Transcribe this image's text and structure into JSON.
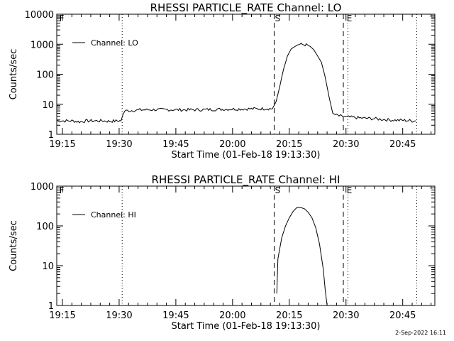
{
  "chart_data": [
    {
      "type": "line",
      "title": "RHESSI PARTICLE_RATE Channel: LO",
      "xlabel": "Start Time (01-Feb-18 19:13:30)",
      "ylabel": "Counts/sec",
      "x_tick_labels": [
        "19:15",
        "19:30",
        "19:45",
        "20:00",
        "20:15",
        "20:30",
        "20:45"
      ],
      "x_ticks_min": [
        1.5,
        16.5,
        31.5,
        46.5,
        61.5,
        76.5,
        91.5
      ],
      "xlim_min": [
        0,
        100
      ],
      "y_scale": "log",
      "ylim": [
        1,
        10000
      ],
      "y_tick_labels": [
        "1",
        "10",
        "100",
        "1000",
        "10000"
      ],
      "y_ticks": [
        1,
        10,
        100,
        1000,
        10000
      ],
      "legend": "top-left",
      "legend_entries": [
        "Channel: LO"
      ],
      "flag_letters": [
        "F",
        "S",
        "E"
      ],
      "flag_x_min": [
        0.5,
        57.5,
        76.5
      ],
      "dashed_x_min": [
        57.5,
        75.8
      ],
      "dotted_x_min": [
        17.3,
        77.0,
        95.2
      ],
      "series": [
        {
          "name": "Channel: LO",
          "x_min": [
            0,
            4,
            6,
            8,
            12,
            14,
            16,
            17,
            17.5,
            18,
            22,
            26,
            30,
            34,
            38,
            42,
            46,
            50,
            54,
            56,
            57,
            58,
            59,
            60,
            61,
            62,
            64,
            66,
            67,
            68,
            70,
            71,
            72,
            73,
            74,
            75,
            76,
            76.5,
            80,
            84,
            88,
            92,
            94,
            95
          ],
          "y": [
            2.8,
            2.8,
            2.6,
            2.8,
            2.8,
            2.7,
            2.8,
            2.8,
            4.5,
            6.0,
            6.5,
            6.6,
            6.6,
            6.5,
            6.6,
            6.7,
            6.9,
            7.0,
            7.1,
            7.2,
            7.0,
            12,
            40,
            150,
            400,
            700,
            1000,
            950,
            850,
            650,
            250,
            80,
            18,
            5,
            4.3,
            4.0,
            3.8,
            3.8,
            3.5,
            3.3,
            3.0,
            2.9,
            2.8,
            2.8
          ],
          "noisy": true
        }
      ]
    },
    {
      "type": "line",
      "title": "RHESSI PARTICLE_RATE Channel: HI",
      "xlabel": "Start Time (01-Feb-18 19:13:30)",
      "ylabel": "Counts/sec",
      "x_tick_labels": [
        "19:15",
        "19:30",
        "19:45",
        "20:00",
        "20:15",
        "20:30",
        "20:45"
      ],
      "x_ticks_min": [
        1.5,
        16.5,
        31.5,
        46.5,
        61.5,
        76.5,
        91.5
      ],
      "xlim_min": [
        0,
        100
      ],
      "y_scale": "log",
      "ylim": [
        1,
        1000
      ],
      "y_tick_labels": [
        "1",
        "10",
        "100",
        "1000"
      ],
      "y_ticks": [
        1,
        10,
        100,
        1000
      ],
      "legend": "top-left",
      "legend_entries": [
        "Channel: HI"
      ],
      "flag_letters": [
        "F",
        "S",
        "E"
      ],
      "flag_x_min": [
        0.5,
        57.5,
        76.5
      ],
      "dashed_x_min": [
        57.5,
        75.8
      ],
      "dotted_x_min": [
        17.3,
        77.0,
        95.2
      ],
      "series": [
        {
          "name": "Channel: HI",
          "x_min": [
            58.2,
            58.5,
            59.5,
            60.5,
            61.5,
            62.5,
            63.5,
            64.5,
            65.5,
            66.5,
            67.5,
            68.5,
            69.5,
            70.5,
            71.0,
            71.5
          ],
          "y": [
            2,
            15,
            50,
            100,
            160,
            230,
            290,
            290,
            270,
            220,
            160,
            90,
            35,
            8,
            2.5,
            0.8
          ],
          "noisy": false
        }
      ]
    }
  ],
  "footer": {
    "date_stamp": "2-Sep-2022 16:11"
  }
}
